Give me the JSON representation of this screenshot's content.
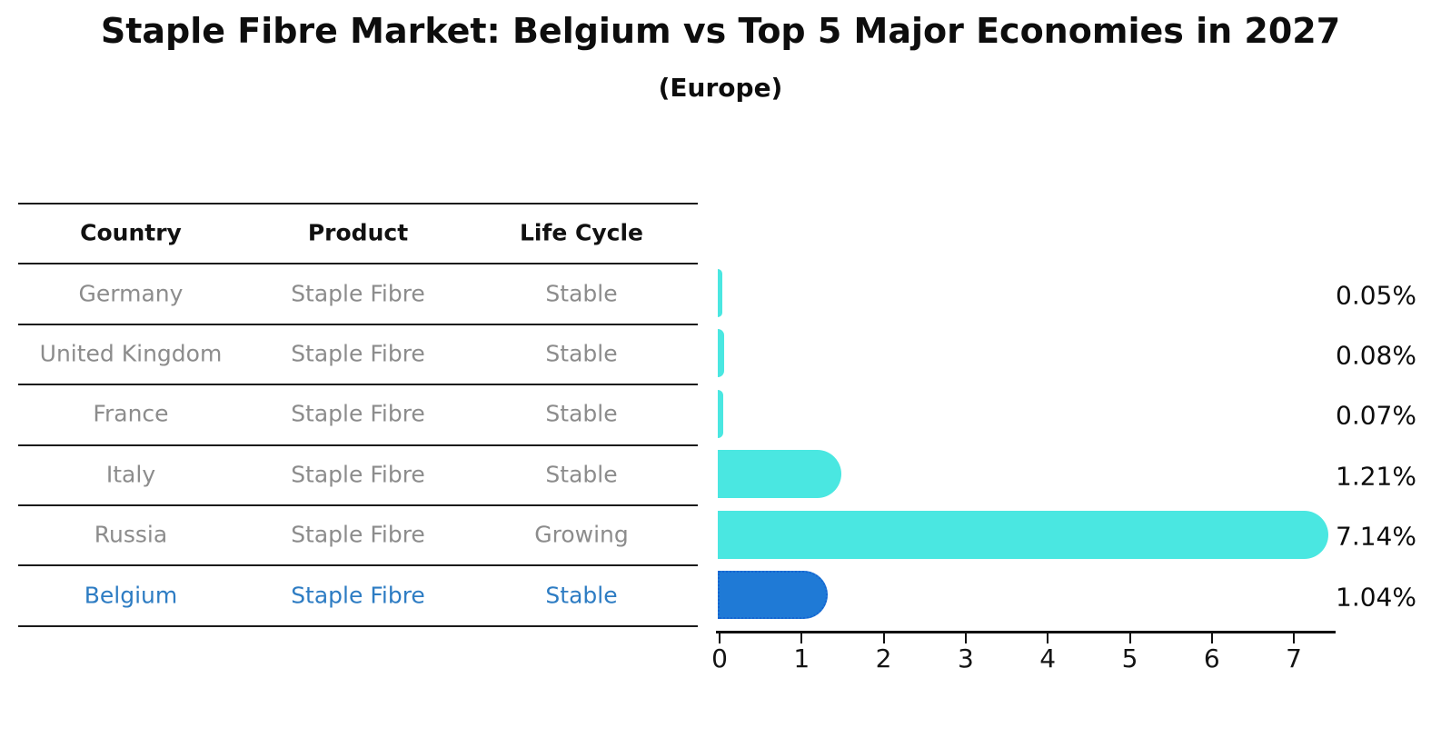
{
  "title": "Staple Fibre Market: Belgium vs Top 5 Major Economies in 2027",
  "subtitle": "(Europe)",
  "table": {
    "headers": [
      "Country",
      "Product",
      "Life Cycle"
    ],
    "rows": [
      {
        "country": "Germany",
        "product": "Staple Fibre",
        "life_cycle": "Stable",
        "value_label": "0.05%",
        "highlighted": false
      },
      {
        "country": "United Kingdom",
        "product": "Staple Fibre",
        "life_cycle": "Stable",
        "value_label": "0.08%",
        "highlighted": false
      },
      {
        "country": "France",
        "product": "Staple Fibre",
        "life_cycle": "Stable",
        "value_label": "0.07%",
        "highlighted": false
      },
      {
        "country": "Italy",
        "product": "Staple Fibre",
        "life_cycle": "Stable",
        "value_label": "1.21%",
        "highlighted": false
      },
      {
        "country": "Russia",
        "product": "Staple Fibre",
        "life_cycle": "Growing",
        "value_label": "7.14%",
        "highlighted": false
      },
      {
        "country": "Belgium",
        "product": "Staple Fibre",
        "life_cycle": "Stable",
        "value_label": "1.04%",
        "highlighted": true
      }
    ]
  },
  "chart_data": {
    "type": "bar",
    "orientation": "horizontal",
    "title": "Staple Fibre Market: Belgium vs Top 5 Major Economies in 2027",
    "subtitle": "(Europe)",
    "categories": [
      "Germany",
      "United Kingdom",
      "France",
      "Italy",
      "Russia",
      "Belgium"
    ],
    "values": [
      0.05,
      0.08,
      0.07,
      1.21,
      7.14,
      1.04
    ],
    "value_labels": [
      "0.05%",
      "0.08%",
      "0.07%",
      "1.21%",
      "7.14%",
      "1.04%"
    ],
    "xticks": [
      0,
      1,
      2,
      3,
      4,
      5,
      6,
      7
    ],
    "xlim": [
      0,
      7.5
    ],
    "grid": false,
    "legend": "none",
    "highlight_index": 5
  },
  "colors": {
    "bar": "#4AE7E1",
    "highlight_bar": "#1F7AD6",
    "highlight_border": "#1565D2",
    "highlight_text": "#2D7CC3",
    "row_text": "#8C8C8C",
    "header_text": "#111111",
    "axis": "#101010"
  }
}
